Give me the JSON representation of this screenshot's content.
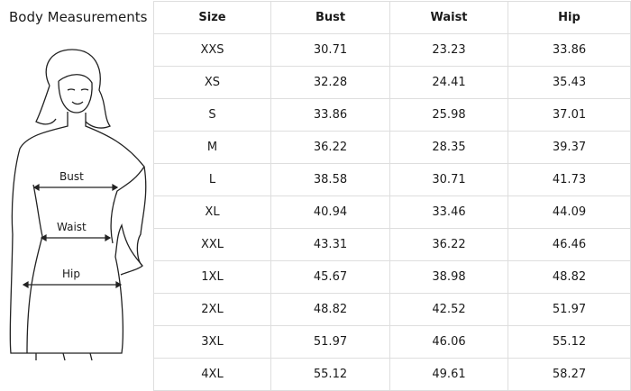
{
  "title": "Body Measurements",
  "figure_labels": {
    "bust": "Bust",
    "waist": "Waist",
    "hip": "Hip"
  },
  "table": {
    "headers": [
      "Size",
      "Bust",
      "Waist",
      "Hip"
    ],
    "rows": [
      [
        "XXS",
        "30.71",
        "23.23",
        "33.86"
      ],
      [
        "XS",
        "32.28",
        "24.41",
        "35.43"
      ],
      [
        "S",
        "33.86",
        "25.98",
        "37.01"
      ],
      [
        "M",
        "36.22",
        "28.35",
        "39.37"
      ],
      [
        "L",
        "38.58",
        "30.71",
        "41.73"
      ],
      [
        "XL",
        "40.94",
        "33.46",
        "44.09"
      ],
      [
        "XXL",
        "43.31",
        "36.22",
        "46.46"
      ],
      [
        "1XL",
        "45.67",
        "38.98",
        "48.82"
      ],
      [
        "2XL",
        "48.82",
        "42.52",
        "51.97"
      ],
      [
        "3XL",
        "51.97",
        "46.06",
        "55.12"
      ],
      [
        "4XL",
        "55.12",
        "49.61",
        "58.27"
      ]
    ]
  }
}
